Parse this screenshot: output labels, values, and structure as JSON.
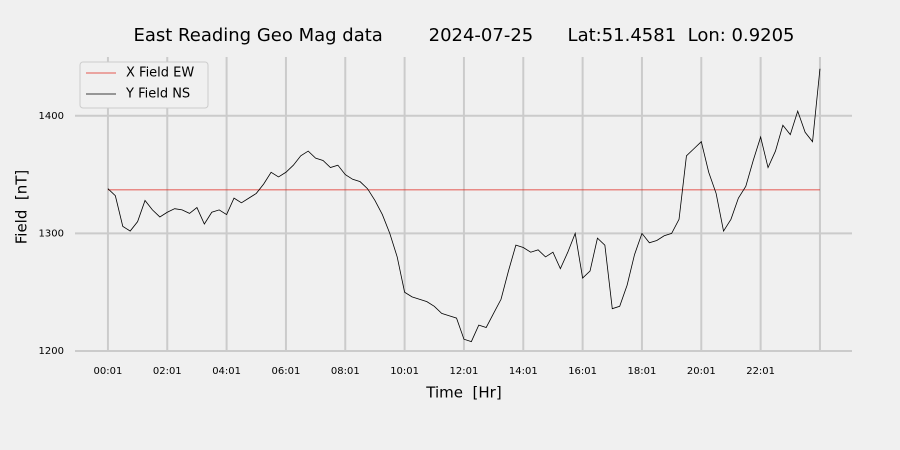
{
  "chart_data": {
    "type": "line",
    "title": "East Reading Geo Mag data        2024-07-25      Lat:51.4581  Lon: 0.9205",
    "x_label": "Time  [Hr]",
    "y_label": "Field  [nT]",
    "xlim": [
      -1.11,
      25.08
    ],
    "ylim": [
      1200,
      1450
    ],
    "xticks": [
      {
        "value": 0,
        "label": "00:01"
      },
      {
        "value": 2,
        "label": "02:01"
      },
      {
        "value": 4,
        "label": "04:01"
      },
      {
        "value": 6,
        "label": "06:01"
      },
      {
        "value": 8,
        "label": "08:01"
      },
      {
        "value": 10,
        "label": "10:01"
      },
      {
        "value": 12,
        "label": "12:01"
      },
      {
        "value": 14,
        "label": "14:01"
      },
      {
        "value": 16,
        "label": "16:01"
      },
      {
        "value": 18,
        "label": "18:01"
      },
      {
        "value": 20,
        "label": "20:01"
      },
      {
        "value": 22,
        "label": "22:01"
      },
      {
        "value": 24,
        "label": null
      }
    ],
    "yticks": [
      1200,
      1300,
      1400
    ],
    "grid": true,
    "legend": "upper left",
    "series": [
      {
        "name": "X Field EW",
        "color": "#e0241b",
        "x": [
          0,
          24
        ],
        "values": [
          1337,
          1337
        ]
      },
      {
        "name": "Y Field NS",
        "color": "#000000",
        "x": [
          0,
          0.25,
          0.5,
          0.75,
          1,
          1.25,
          1.5,
          1.75,
          2,
          2.25,
          2.5,
          2.75,
          3,
          3.25,
          3.5,
          3.75,
          4,
          4.25,
          4.5,
          4.75,
          5,
          5.25,
          5.5,
          5.75,
          6,
          6.25,
          6.5,
          6.75,
          7,
          7.25,
          7.5,
          7.75,
          8,
          8.25,
          8.5,
          8.75,
          9,
          9.25,
          9.5,
          9.75,
          10,
          10.25,
          10.5,
          10.75,
          11,
          11.25,
          11.5,
          11.75,
          12,
          12.25,
          12.5,
          12.75,
          13,
          13.25,
          13.5,
          13.75,
          14,
          14.25,
          14.5,
          14.75,
          15,
          15.25,
          15.5,
          15.75,
          16,
          16.25,
          16.5,
          16.75,
          17,
          17.25,
          17.5,
          17.75,
          18,
          18.25,
          18.5,
          18.75,
          19,
          19.25,
          19.5,
          19.75,
          20,
          20.25,
          20.5,
          20.75,
          21,
          21.25,
          21.5,
          21.75,
          22,
          22.25,
          22.5,
          22.75,
          23,
          23.25,
          23.5,
          23.75,
          24
        ],
        "values": [
          1338,
          1332,
          1306,
          1302,
          1310,
          1328,
          1320,
          1314,
          1318,
          1321,
          1320,
          1317,
          1322,
          1308,
          1318,
          1320,
          1316,
          1330,
          1326,
          1330,
          1334,
          1342,
          1352,
          1348,
          1352,
          1358,
          1366,
          1370,
          1364,
          1362,
          1356,
          1358,
          1350,
          1346,
          1344,
          1338,
          1328,
          1316,
          1300,
          1280,
          1250,
          1246,
          1244,
          1242,
          1238,
          1232,
          1230,
          1228,
          1210,
          1208,
          1222,
          1220,
          1232,
          1244,
          1268,
          1290,
          1288,
          1284,
          1286,
          1280,
          1284,
          1270,
          1284,
          1300,
          1262,
          1268,
          1296,
          1290,
          1236,
          1238,
          1256,
          1282,
          1300,
          1292,
          1294,
          1298,
          1300,
          1312,
          1366,
          1372,
          1378,
          1352,
          1334,
          1302,
          1312,
          1330,
          1340,
          1362,
          1382,
          1356,
          1370,
          1392,
          1384,
          1404,
          1386,
          1378,
          1440
        ]
      }
    ]
  }
}
